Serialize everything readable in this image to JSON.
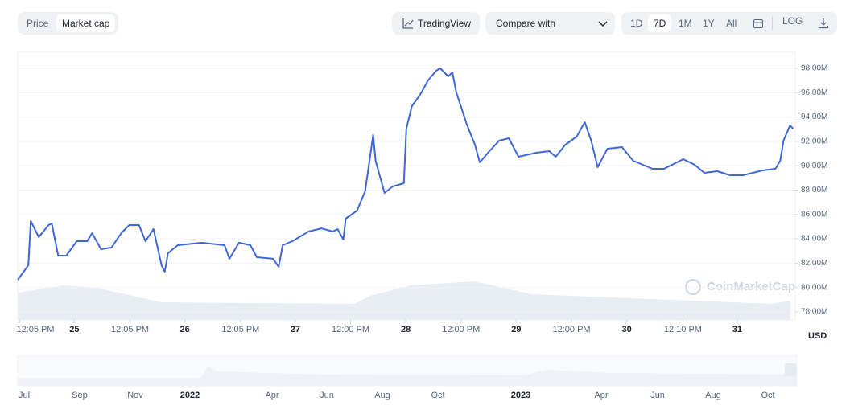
{
  "toolbar": {
    "tabs": [
      "Price",
      "Market cap"
    ],
    "tradingview": "TradingView",
    "compare": "Compare with",
    "ranges": [
      "1D",
      "7D",
      "1M",
      "1Y",
      "All"
    ],
    "log": "LOG"
  },
  "chart_data": {
    "type": "line",
    "x": [
      -12.28,
      -10.0,
      -9.47,
      -7.72,
      -5.61,
      -4.91,
      -3.51,
      -1.75,
      0.53,
      2.81,
      3.86,
      5.79,
      8.07,
      10.18,
      11.93,
      14.04,
      15.44,
      17.19,
      18.95,
      19.65,
      20.35,
      22.46,
      27.72,
      32.63,
      33.68,
      35.79,
      38.25,
      39.65,
      43.16,
      44.39,
      45.26,
      47.37,
      50.88,
      53.68,
      56.14,
      57.19,
      58.42,
      58.95,
      61.4,
      63.16,
      63.86,
      64.91,
      65.44,
      67.37,
      69.12,
      71.58,
      72.11,
      73.33,
      75.09,
      76.84,
      78.6,
      79.47,
      81.23,
      82.11,
      82.98,
      85.26,
      87.02,
      88.07,
      90.18,
      92.28,
      94.39,
      96.49,
      100.35,
      103.16,
      104.56,
      106.67,
      109.12,
      110.88,
      112.28,
      113.68,
      115.79,
      118.95,
      121.4,
      125.61,
      128.07,
      132.28,
      134.74,
      136.84,
      139.65,
      142.46,
      145.26,
      149.47,
      152.28,
      153.33,
      154.04,
      155.44,
      156.14
    ],
    "series": [
      {
        "name": "Market cap",
        "color": "#3f67d6",
        "values": [
          80640000,
          81830000,
          85460000,
          84140000,
          85130000,
          85260000,
          82620000,
          82620000,
          83810000,
          83810000,
          84470000,
          83150000,
          83280000,
          84470000,
          85130000,
          85130000,
          83810000,
          84800000,
          81830000,
          81300000,
          82820000,
          83480000,
          83680000,
          83480000,
          82360000,
          83680000,
          83480000,
          82490000,
          82360000,
          81700000,
          83480000,
          83810000,
          84600000,
          84860000,
          84600000,
          84800000,
          83940000,
          85660000,
          86320000,
          87900000,
          89750000,
          92520000,
          90410000,
          87770000,
          88300000,
          88560000,
          93050000,
          94900000,
          95820000,
          97010000,
          97800000,
          98000000,
          97340000,
          97670000,
          96020000,
          93380000,
          91730000,
          90280000,
          91200000,
          92060000,
          92260000,
          90740000,
          91070000,
          91200000,
          90740000,
          91730000,
          92390000,
          93580000,
          92060000,
          89880000,
          91400000,
          91530000,
          90410000,
          89750000,
          89750000,
          90540000,
          90080000,
          89420000,
          89550000,
          89220000,
          89220000,
          89620000,
          89750000,
          90410000,
          92060000,
          93310000,
          93050000
        ]
      }
    ],
    "xlim": [
      -12.3,
      156.6
    ],
    "xticks": [
      {
        "value": -11.9,
        "label": "12:05 PM"
      },
      {
        "value": 0,
        "label": "25"
      },
      {
        "value": 12.1,
        "label": "12:05 PM"
      },
      {
        "value": 24,
        "label": "26"
      },
      {
        "value": 36.1,
        "label": "12:05 PM"
      },
      {
        "value": 48,
        "label": "27"
      },
      {
        "value": 60,
        "label": "12:00 PM"
      },
      {
        "value": 72,
        "label": "28"
      },
      {
        "value": 84,
        "label": "12:00 PM"
      },
      {
        "value": 96,
        "label": "29"
      },
      {
        "value": 108,
        "label": "12:00 PM"
      },
      {
        "value": 120,
        "label": "30"
      },
      {
        "value": 132.2,
        "label": "12:10 PM"
      },
      {
        "value": 144,
        "label": "31"
      }
    ],
    "ylim": [
      77340000,
      99320000
    ],
    "yticks": [
      {
        "value": 78000000,
        "label": "78.00M"
      },
      {
        "value": 80000000,
        "label": "80.00M"
      },
      {
        "value": 82000000,
        "label": "82.00M"
      },
      {
        "value": 84000000,
        "label": "84.00M"
      },
      {
        "value": 86000000,
        "label": "86.00M"
      },
      {
        "value": 88000000,
        "label": "88.00M"
      },
      {
        "value": 90000000,
        "label": "90.00M"
      },
      {
        "value": 92000000,
        "label": "92.00M"
      },
      {
        "value": 94000000,
        "label": "94.00M"
      },
      {
        "value": 96000000,
        "label": "96.00M"
      },
      {
        "value": 98000000,
        "label": "98.00M"
      }
    ],
    "y_unit": "USD",
    "grid": true
  },
  "watermark": "CoinMarketCap",
  "navigator": {
    "labels": [
      "Jul",
      "Sep",
      "Nov",
      "2022",
      "Apr",
      "Jun",
      "Aug",
      "Oct",
      "2023",
      "Apr",
      "Jun",
      "Aug",
      "Oct"
    ]
  }
}
